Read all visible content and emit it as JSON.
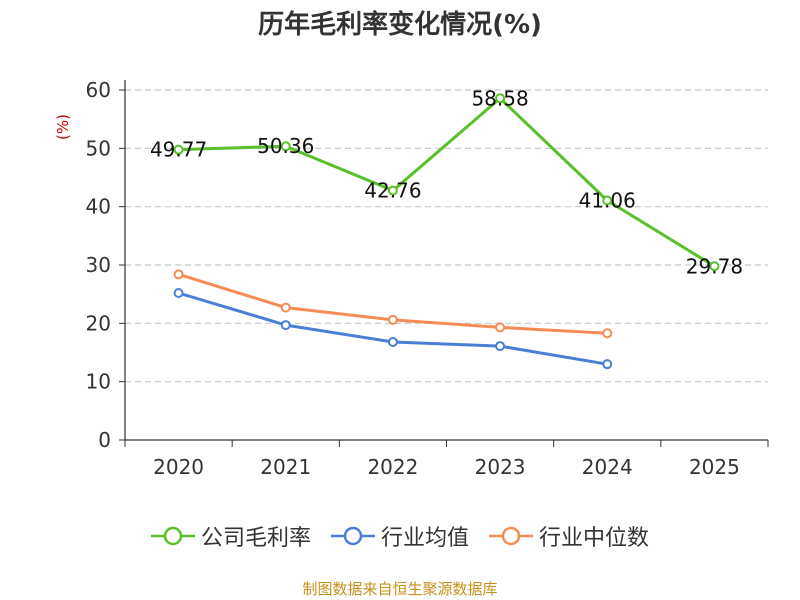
{
  "title": "历年毛利率变化情况(%)",
  "source": "制图数据来自恒生聚源数据库",
  "chart_data": {
    "type": "line",
    "title": "历年毛利率变化情况(%)",
    "ylabel": "(%)",
    "categories": [
      "2020",
      "2021",
      "2022",
      "2023",
      "2024",
      "2025"
    ],
    "ylim": [
      0,
      60
    ],
    "yticks": [
      0,
      10,
      20,
      30,
      40,
      50,
      60
    ],
    "grid": true,
    "legend_position": "bottom",
    "series": [
      {
        "name": "公司毛利率",
        "color": "#5ac02a",
        "values": [
          49.77,
          50.36,
          42.76,
          58.58,
          41.06,
          29.78
        ],
        "labels": [
          "49.77",
          "50.36",
          "42.76",
          "58.58",
          "41.06",
          "29.78"
        ]
      },
      {
        "name": "行业均值",
        "color": "#4a7fd8",
        "values": [
          25.2,
          19.7,
          16.8,
          16.1,
          13.0,
          null
        ]
      },
      {
        "name": "行业中位数",
        "color": "#f58c55",
        "values": [
          28.4,
          22.7,
          20.6,
          19.3,
          18.3,
          null
        ]
      }
    ]
  }
}
